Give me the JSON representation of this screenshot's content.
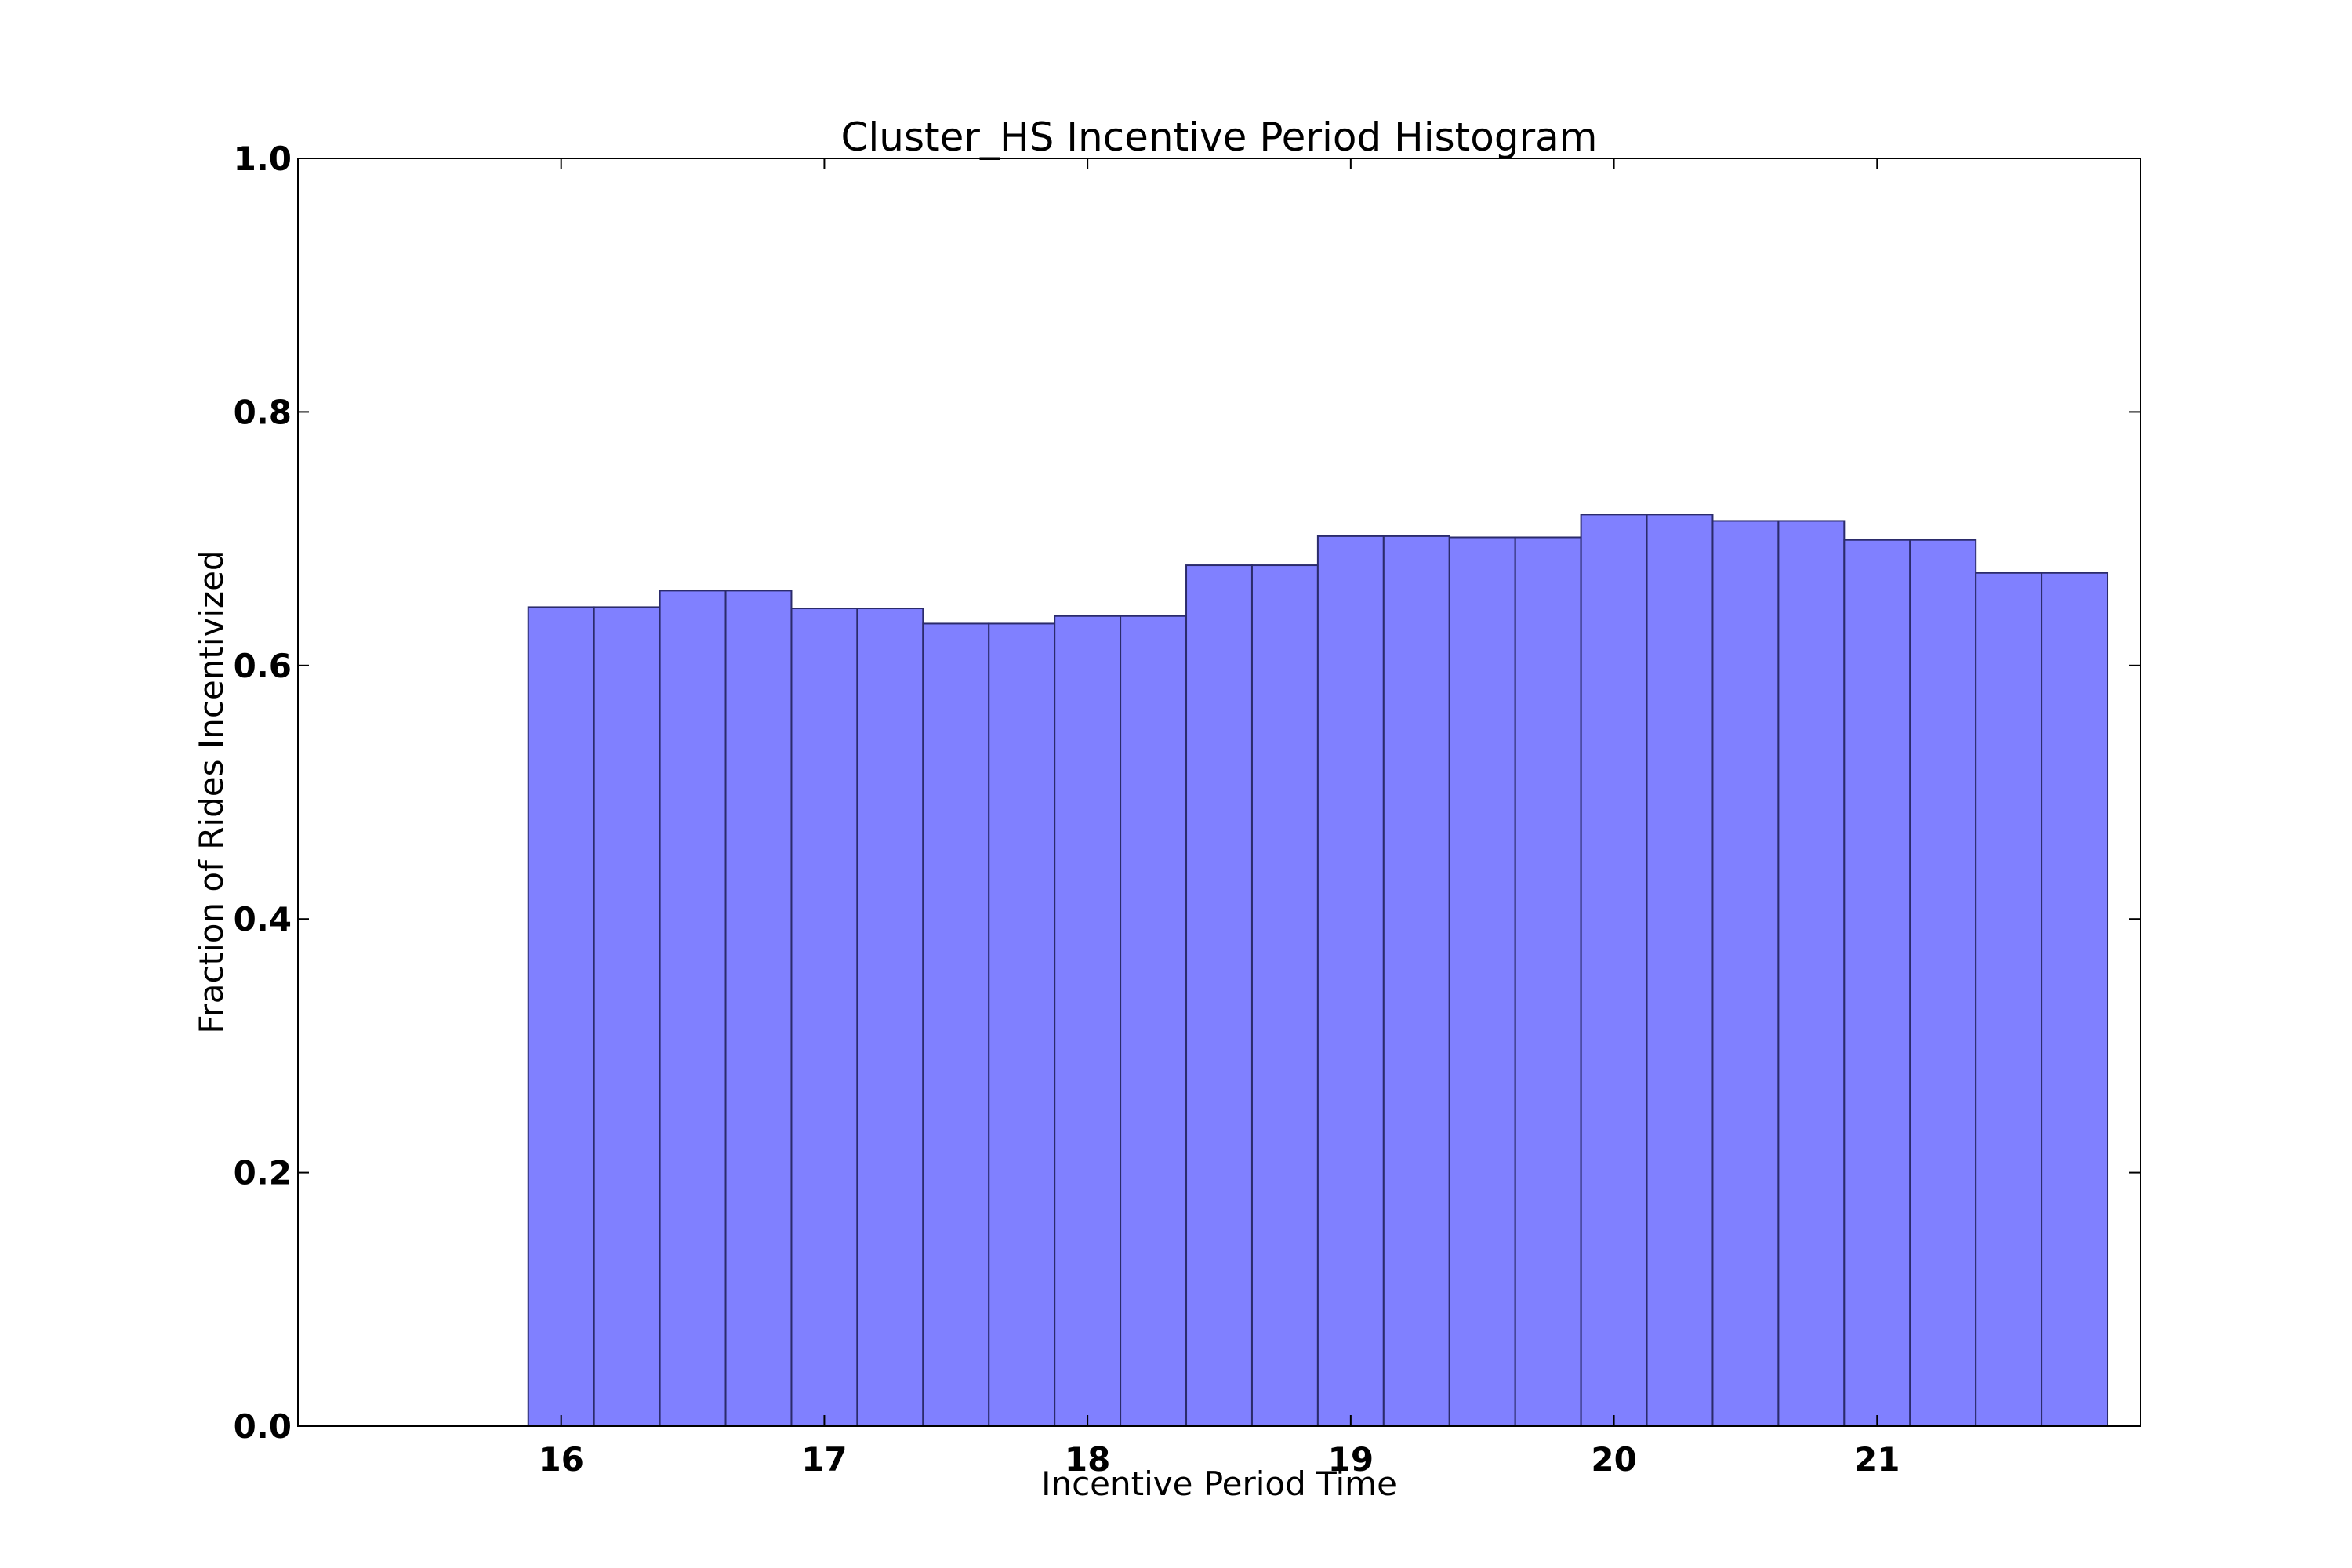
{
  "chart_data": {
    "type": "bar",
    "title": "Cluster_HS Incentive Period Histogram",
    "xlabel": "Incentive Period Time",
    "ylabel": "Fraction of Rides Incentivized",
    "xlim": [
      15.0,
      22.0
    ],
    "ylim": [
      0.0,
      1.0
    ],
    "xticks": [
      16,
      17,
      18,
      19,
      20,
      21
    ],
    "yticks": [
      0.0,
      0.2,
      0.4,
      0.6,
      0.8,
      1.0
    ],
    "bin_start": 15.875,
    "bin_width": 0.25,
    "values": [
      0.646,
      0.646,
      0.659,
      0.659,
      0.645,
      0.645,
      0.633,
      0.633,
      0.639,
      0.639,
      0.679,
      0.679,
      0.702,
      0.702,
      0.701,
      0.701,
      0.719,
      0.719,
      0.714,
      0.714,
      0.699,
      0.699,
      0.673,
      0.673
    ],
    "bar_color": "#8080ff",
    "bar_edge_color": "#2b2b6b",
    "grid": false
  }
}
